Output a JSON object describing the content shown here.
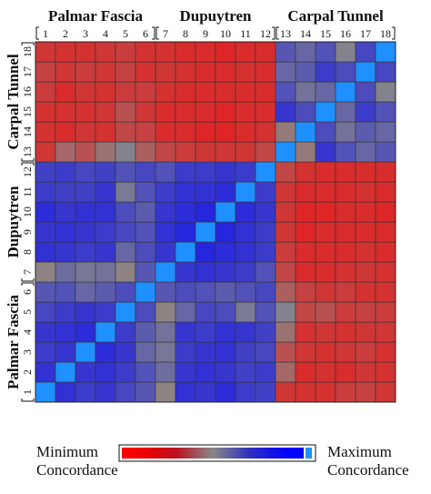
{
  "chart_data": {
    "type": "heatmap",
    "groups": [
      {
        "name": "Palmar Fascia",
        "range": [
          1,
          6
        ]
      },
      {
        "name": "Dupuytren",
        "range": [
          7,
          12
        ]
      },
      {
        "name": "Carpal Tunnel",
        "range": [
          13,
          18
        ]
      }
    ],
    "x_ticks": [
      "1",
      "2",
      "3",
      "4",
      "5",
      "6",
      "7",
      "8",
      "9",
      "10",
      "11",
      "12",
      "13",
      "14",
      "15",
      "16",
      "17",
      "18"
    ],
    "y_ticks": [
      "1",
      "2",
      "3",
      "4",
      "5",
      "6",
      "7",
      "8",
      "9",
      "10",
      "11",
      "12",
      "13",
      "14",
      "15",
      "16",
      "17",
      "18"
    ],
    "y_order": "bottom-to-top",
    "color_scale": {
      "low": "#ff0000",
      "mid": "#888888",
      "high": "#0000ff",
      "diagonal": "#1e90ff"
    },
    "matrix": [
      [
        1.0,
        0.82,
        0.78,
        0.8,
        0.74,
        0.68,
        0.48,
        0.82,
        0.8,
        0.84,
        0.78,
        0.76,
        0.2,
        0.18,
        0.18,
        0.22,
        0.24,
        0.2
      ],
      [
        0.82,
        1.0,
        0.8,
        0.82,
        0.78,
        0.7,
        0.6,
        0.8,
        0.82,
        0.8,
        0.76,
        0.78,
        0.38,
        0.16,
        0.18,
        0.16,
        0.2,
        0.18
      ],
      [
        0.78,
        0.8,
        1.0,
        0.84,
        0.8,
        0.62,
        0.56,
        0.78,
        0.8,
        0.82,
        0.76,
        0.74,
        0.3,
        0.2,
        0.18,
        0.2,
        0.22,
        0.18
      ],
      [
        0.8,
        0.82,
        0.84,
        1.0,
        0.78,
        0.66,
        0.58,
        0.8,
        0.78,
        0.82,
        0.8,
        0.76,
        0.42,
        0.18,
        0.2,
        0.18,
        0.2,
        0.2
      ],
      [
        0.74,
        0.78,
        0.8,
        0.78,
        1.0,
        0.72,
        0.48,
        0.62,
        0.74,
        0.72,
        0.55,
        0.7,
        0.52,
        0.26,
        0.3,
        0.22,
        0.24,
        0.22
      ],
      [
        0.68,
        0.7,
        0.62,
        0.66,
        0.72,
        1.0,
        0.68,
        0.72,
        0.7,
        0.66,
        0.7,
        0.74,
        0.35,
        0.24,
        0.2,
        0.22,
        0.18,
        0.18
      ],
      [
        0.48,
        0.6,
        0.56,
        0.58,
        0.48,
        0.68,
        1.0,
        0.8,
        0.82,
        0.8,
        0.78,
        0.7,
        0.26,
        0.16,
        0.16,
        0.18,
        0.2,
        0.18
      ],
      [
        0.82,
        0.8,
        0.78,
        0.8,
        0.62,
        0.72,
        0.8,
        1.0,
        0.86,
        0.84,
        0.82,
        0.78,
        0.22,
        0.16,
        0.16,
        0.16,
        0.18,
        0.16
      ],
      [
        0.8,
        0.82,
        0.8,
        0.78,
        0.74,
        0.7,
        0.82,
        0.86,
        1.0,
        0.86,
        0.82,
        0.78,
        0.2,
        0.14,
        0.16,
        0.16,
        0.16,
        0.16
      ],
      [
        0.84,
        0.8,
        0.82,
        0.82,
        0.72,
        0.66,
        0.8,
        0.84,
        0.86,
        1.0,
        0.84,
        0.8,
        0.2,
        0.14,
        0.14,
        0.16,
        0.16,
        0.14
      ],
      [
        0.78,
        0.76,
        0.76,
        0.8,
        0.55,
        0.7,
        0.78,
        0.82,
        0.82,
        0.84,
        1.0,
        0.78,
        0.2,
        0.16,
        0.16,
        0.16,
        0.18,
        0.16
      ],
      [
        0.76,
        0.78,
        0.74,
        0.76,
        0.7,
        0.74,
        0.7,
        0.78,
        0.78,
        0.8,
        0.78,
        1.0,
        0.26,
        0.18,
        0.16,
        0.16,
        0.16,
        0.16
      ],
      [
        0.2,
        0.38,
        0.3,
        0.42,
        0.52,
        0.35,
        0.26,
        0.22,
        0.2,
        0.2,
        0.2,
        0.26,
        1.0,
        0.45,
        0.8,
        0.7,
        0.62,
        0.68
      ],
      [
        0.18,
        0.16,
        0.2,
        0.18,
        0.26,
        0.24,
        0.16,
        0.16,
        0.14,
        0.14,
        0.16,
        0.18,
        0.45,
        1.0,
        0.72,
        0.58,
        0.66,
        0.62
      ],
      [
        0.18,
        0.18,
        0.18,
        0.2,
        0.3,
        0.2,
        0.16,
        0.16,
        0.16,
        0.14,
        0.16,
        0.16,
        0.8,
        0.72,
        1.0,
        0.62,
        0.78,
        0.7
      ],
      [
        0.22,
        0.16,
        0.2,
        0.18,
        0.22,
        0.22,
        0.18,
        0.16,
        0.16,
        0.16,
        0.16,
        0.16,
        0.7,
        0.58,
        0.62,
        1.0,
        0.72,
        0.52
      ],
      [
        0.24,
        0.2,
        0.22,
        0.2,
        0.24,
        0.18,
        0.2,
        0.18,
        0.16,
        0.16,
        0.18,
        0.16,
        0.62,
        0.66,
        0.78,
        0.72,
        1.0,
        0.74
      ],
      [
        0.2,
        0.18,
        0.18,
        0.2,
        0.22,
        0.18,
        0.18,
        0.16,
        0.16,
        0.14,
        0.16,
        0.16,
        0.68,
        0.62,
        0.7,
        0.52,
        0.74,
        1.0
      ]
    ],
    "legend": {
      "min_label": "Minimum Concordance",
      "max_label": "Maximum Concordance"
    }
  }
}
